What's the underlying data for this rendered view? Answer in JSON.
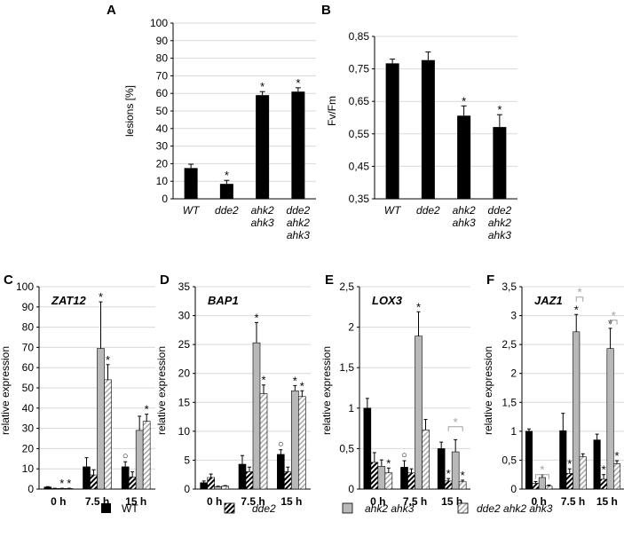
{
  "chart_data": [
    {
      "id": "A",
      "panel_label": "A",
      "type": "bar",
      "title": "",
      "xlabel": "",
      "ylabel": "lesions [%]",
      "ylim": [
        0,
        100
      ],
      "yticks": [
        0,
        10,
        20,
        30,
        40,
        50,
        60,
        70,
        80,
        90,
        100
      ],
      "ytick_labels": [
        "0",
        "10",
        "20",
        "30",
        "40",
        "50",
        "60",
        "70",
        "80",
        "90",
        "100"
      ],
      "categories": [
        [
          "WT"
        ],
        [
          "dde2"
        ],
        [
          "ahk2",
          "ahk3"
        ],
        [
          "dde2",
          "ahk2",
          "ahk3"
        ]
      ],
      "values": [
        17.5,
        8.5,
        59,
        61
      ],
      "errors": [
        2.2,
        2.0,
        2.0,
        2.2
      ],
      "significance": [
        "",
        "*",
        "*",
        "*"
      ],
      "fill": "#000000"
    },
    {
      "id": "B",
      "panel_label": "B",
      "type": "bar",
      "title": "",
      "xlabel": "",
      "ylabel": "Fv/Fm",
      "ylim": [
        0.35,
        0.85
      ],
      "yticks": [
        0.35,
        0.45,
        0.55,
        0.65,
        0.75,
        0.85
      ],
      "ytick_labels": [
        "0,35",
        "0,45",
        "0,55",
        "0,65",
        "0,75",
        "0,85"
      ],
      "categories": [
        [
          "WT"
        ],
        [
          "dde2"
        ],
        [
          "ahk2",
          "ahk3"
        ],
        [
          "dde2",
          "ahk2",
          "ahk3"
        ]
      ],
      "values": [
        0.767,
        0.777,
        0.606,
        0.571
      ],
      "errors": [
        0.013,
        0.025,
        0.03,
        0.038
      ],
      "significance": [
        "",
        "",
        "*",
        "*"
      ],
      "fill": "#000000"
    },
    {
      "id": "C",
      "panel_label": "C",
      "type": "bar",
      "gene": "ZAT12",
      "ylabel": "relative expression",
      "xlabel": "",
      "ylim": [
        0,
        100
      ],
      "yticks": [
        0,
        10,
        20,
        30,
        40,
        50,
        60,
        70,
        80,
        90,
        100
      ],
      "ytick_labels": [
        "0",
        "10",
        "20",
        "30",
        "40",
        "50",
        "60",
        "70",
        "80",
        "90",
        "100"
      ],
      "categories": [
        "0 h",
        "7.5 h",
        "15 h"
      ],
      "series": [
        {
          "name": "WT",
          "values": [
            1,
            11,
            11
          ],
          "errors": [
            0.2,
            4.5,
            2.5
          ],
          "marks": [
            "",
            "",
            "○"
          ]
        },
        {
          "name": "dde2",
          "values": [
            0.3,
            7,
            6
          ],
          "errors": [
            0.1,
            2.5,
            2.5
          ],
          "marks": [
            "",
            "",
            ""
          ]
        },
        {
          "name": "ahk2 ahk3",
          "values": [
            0.3,
            69.5,
            29
          ],
          "errors": [
            0.1,
            23,
            7
          ],
          "marks": [
            "*",
            "*",
            ""
          ]
        },
        {
          "name": "dde2 ahk2 ahk3",
          "values": [
            0.3,
            54,
            33.5
          ],
          "errors": [
            0.1,
            7.5,
            3.5
          ],
          "marks": [
            "*",
            "*",
            "*"
          ]
        }
      ],
      "brackets": []
    },
    {
      "id": "D",
      "panel_label": "D",
      "type": "bar",
      "gene": "BAP1",
      "ylabel": "relative expression",
      "xlabel": "",
      "ylim": [
        0,
        35
      ],
      "yticks": [
        0,
        5,
        10,
        15,
        20,
        25,
        30,
        35
      ],
      "ytick_labels": [
        "0",
        "5",
        "10",
        "15",
        "20",
        "25",
        "30",
        "35"
      ],
      "categories": [
        "0 h",
        "7.5 h",
        "15 h"
      ],
      "series": [
        {
          "name": "WT",
          "values": [
            1.1,
            4.3,
            6.0
          ],
          "errors": [
            0.3,
            1.5,
            0.8
          ],
          "marks": [
            "",
            "",
            "○"
          ]
        },
        {
          "name": "dde2",
          "values": [
            2.0,
            3.0,
            3.0
          ],
          "errors": [
            0.6,
            0.8,
            0.8
          ],
          "marks": [
            "",
            "",
            ""
          ]
        },
        {
          "name": "ahk2 ahk3",
          "values": [
            0.4,
            25.3,
            17.0
          ],
          "errors": [
            0.1,
            3.5,
            0.9
          ],
          "marks": [
            "",
            "*",
            "*"
          ]
        },
        {
          "name": "dde2 ahk2 ahk3",
          "values": [
            0.5,
            16.5,
            16.0
          ],
          "errors": [
            0.1,
            1.5,
            1.0
          ],
          "marks": [
            "",
            "*",
            "*"
          ]
        }
      ],
      "brackets": []
    },
    {
      "id": "E",
      "panel_label": "E",
      "type": "bar",
      "gene": "LOX3",
      "ylabel": "relative expression",
      "xlabel": "",
      "ylim": [
        0,
        2.5
      ],
      "yticks": [
        0,
        0.5,
        1,
        1.5,
        2,
        2.5
      ],
      "ytick_labels": [
        "0",
        "0,5",
        "1",
        "1,5",
        "2",
        "2,5"
      ],
      "categories": [
        "0 h",
        "7.5 h",
        "15 h"
      ],
      "series": [
        {
          "name": "WT",
          "values": [
            1.0,
            0.27,
            0.5
          ],
          "errors": [
            0.12,
            0.08,
            0.08
          ],
          "marks": [
            "",
            "○",
            ""
          ]
        },
        {
          "name": "dde2",
          "values": [
            0.33,
            0.2,
            0.1
          ],
          "errors": [
            0.12,
            0.05,
            0.03
          ],
          "marks": [
            "",
            "",
            "*"
          ]
        },
        {
          "name": "ahk2 ahk3",
          "values": [
            0.28,
            1.89,
            0.46
          ],
          "errors": [
            0.08,
            0.3,
            0.15
          ],
          "marks": [
            "",
            "*",
            ""
          ]
        },
        {
          "name": "dde2 ahk2 ahk3",
          "values": [
            0.2,
            0.73,
            0.09
          ],
          "errors": [
            0.06,
            0.13,
            0.02
          ],
          "marks": [
            "*",
            "",
            "*"
          ]
        }
      ],
      "brackets": [
        {
          "category": 2,
          "from_series": 1,
          "to_series": 3,
          "level": 0.77,
          "mark": "*",
          "color": "#a0a0a0"
        }
      ]
    },
    {
      "id": "F",
      "panel_label": "F",
      "type": "bar",
      "gene": "JAZ1",
      "ylabel": "relative expression",
      "xlabel": "",
      "ylim": [
        0,
        3.5
      ],
      "yticks": [
        0,
        0.5,
        1,
        1.5,
        2,
        2.5,
        3,
        3.5
      ],
      "ytick_labels": [
        "0",
        "0,5",
        "1",
        "1,5",
        "2",
        "2,5",
        "3",
        "3,5"
      ],
      "categories": [
        "0 h",
        "7.5 h",
        "15 h"
      ],
      "series": [
        {
          "name": "WT",
          "values": [
            1.0,
            1.01,
            0.85
          ],
          "errors": [
            0.04,
            0.3,
            0.1
          ],
          "marks": [
            "",
            "",
            ""
          ]
        },
        {
          "name": "dde2",
          "values": [
            0.1,
            0.27,
            0.17
          ],
          "errors": [
            0.03,
            0.08,
            0.08
          ],
          "marks": [
            "",
            "*",
            "*"
          ]
        },
        {
          "name": "ahk2 ahk3",
          "values": [
            0.2,
            2.72,
            2.43
          ],
          "errors": [
            0.05,
            0.3,
            0.35
          ],
          "marks": [
            "",
            "*",
            "*"
          ]
        },
        {
          "name": "dde2 ahk2 ahk3",
          "values": [
            0.05,
            0.56,
            0.44
          ],
          "errors": [
            0.02,
            0.05,
            0.05
          ],
          "marks": [
            "",
            "",
            "*"
          ]
        }
      ],
      "brackets": [
        {
          "category": 0,
          "from_series": 1,
          "to_series": 3,
          "level": 0.25,
          "mark": "*",
          "color": "#a0a0a0"
        },
        {
          "category": 1,
          "from_series": 2,
          "to_series": 3,
          "level": 3.32,
          "mark": "*",
          "color": "#a0a0a0"
        },
        {
          "category": 2,
          "from_series": 2,
          "to_series": 3,
          "level": 2.92,
          "mark": "*",
          "color": "#a0a0a0"
        }
      ]
    }
  ],
  "legend": {
    "placement": "bottom",
    "items": [
      {
        "label": "WT",
        "pattern": "solid-black",
        "italic": false
      },
      {
        "label": "dde2",
        "pattern": "hatch-black",
        "italic": true
      },
      {
        "label": "ahk2 ahk3",
        "pattern": "solid-gray",
        "italic": true
      },
      {
        "label": "dde2 ahk2 ahk3",
        "pattern": "hatch-gray",
        "italic": true
      }
    ]
  },
  "colors": {
    "wt": "#000000",
    "gray_fill": "#b8b8b8",
    "hatch_light": "#d0d0d0",
    "grid": "#d9d9d9",
    "bracket": "#a0a0a0"
  }
}
